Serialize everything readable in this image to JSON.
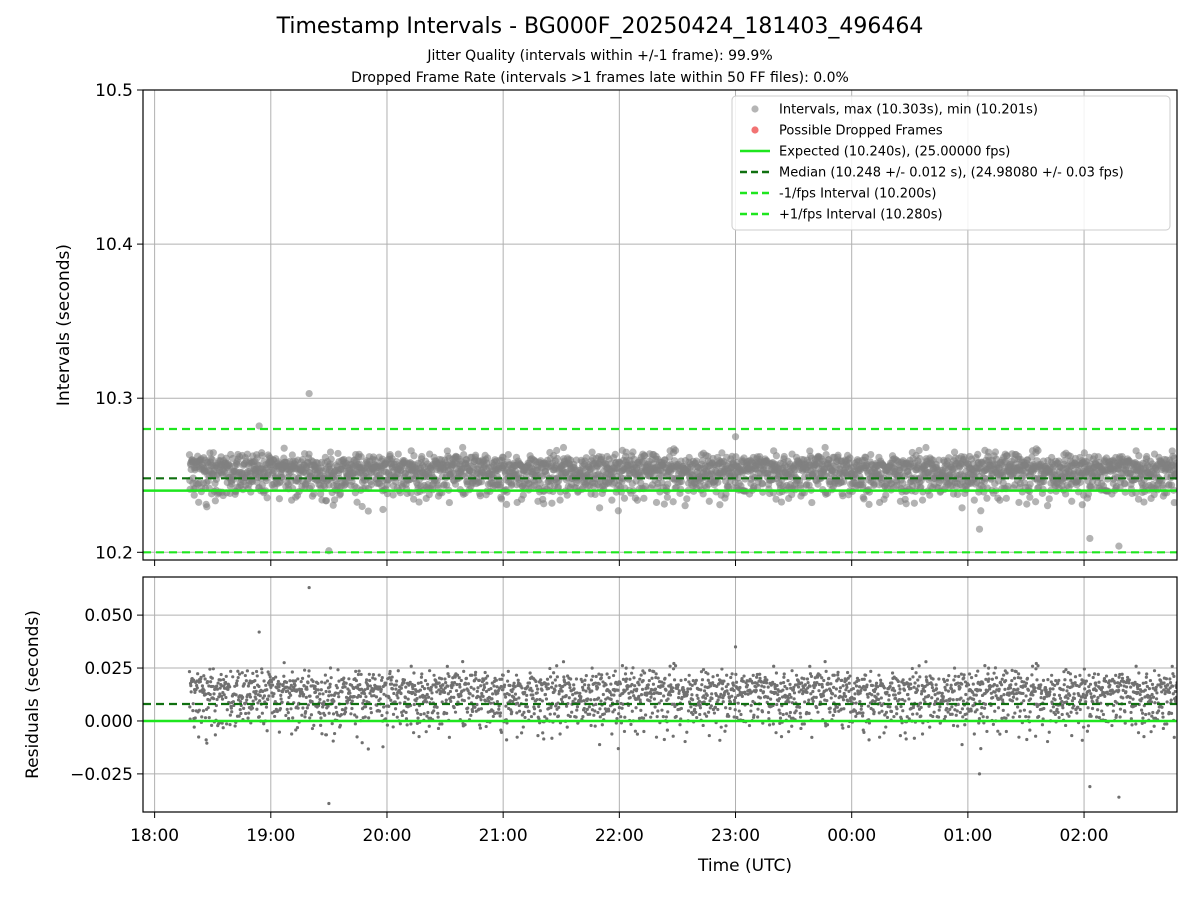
{
  "title": "Timestamp Intervals - BG000F_20250424_181403_496464",
  "subtitle_1": "Jitter Quality (intervals within +/-1 frame): 99.9%",
  "subtitle_2": "Dropped Frame Rate (intervals >1 frames late within 50 FF files): 0.0%",
  "colors": {
    "points": "#808080",
    "dropped": "#f05a5a",
    "expected": "#1ee61e",
    "median": "#107010",
    "bounds": "#1ee61e",
    "grid": "#b0b0b0"
  },
  "chart_data": [
    {
      "type": "scatter",
      "panel": "top",
      "ylabel": "Intervals (seconds)",
      "ylim": [
        10.195,
        10.5
      ],
      "yticks": [
        10.2,
        10.3,
        10.4,
        10.5
      ],
      "ytick_labels": [
        "10.2",
        "10.3",
        "10.4",
        "10.5"
      ],
      "xlim_hours": [
        17.9,
        26.8
      ],
      "xticks_hours": [
        18,
        19,
        20,
        21,
        22,
        23,
        24,
        25,
        26
      ],
      "xtick_labels": [
        "18:00",
        "19:00",
        "20:00",
        "21:00",
        "22:00",
        "23:00",
        "00:00",
        "01:00",
        "02:00"
      ],
      "grid": true,
      "legend_placement": "top-right",
      "legend": [
        {
          "label": "Intervals, max (10.303s), min (10.201s)",
          "kind": "point",
          "color": "#a8a8a8"
        },
        {
          "label": "Possible Dropped Frames",
          "kind": "point",
          "color": "#f05a5a"
        },
        {
          "label": "Expected (10.240s), (25.00000 fps)",
          "kind": "line",
          "color": "#1ee61e"
        },
        {
          "label": "Median (10.248 +/- 0.012 s), (24.98080 +/- 0.03 fps)",
          "kind": "dash",
          "color": "#107010"
        },
        {
          "label": "-1/fps Interval (10.200s)",
          "kind": "dash",
          "color": "#1ee61e"
        },
        {
          "label": "+1/fps Interval (10.280s)",
          "kind": "dash",
          "color": "#1ee61e"
        }
      ],
      "data_range_hours": [
        18.3,
        26.8
      ],
      "n_points": 2900,
      "interval_stats": {
        "expected": 10.24,
        "median": 10.248,
        "std": 0.012,
        "max": 10.303,
        "min": 10.201
      },
      "reference_lines": {
        "expected": 10.24,
        "median": 10.248,
        "minus_1fps": 10.2,
        "plus_1fps": 10.28
      },
      "outliers": [
        {
          "x_hours": 19.33,
          "y": 10.303
        },
        {
          "x_hours": 19.5,
          "y": 10.201
        },
        {
          "x_hours": 26.3,
          "y": 10.204
        },
        {
          "x_hours": 26.05,
          "y": 10.209
        },
        {
          "x_hours": 25.1,
          "y": 10.215
        },
        {
          "x_hours": 18.9,
          "y": 10.282
        },
        {
          "x_hours": 23.0,
          "y": 10.275
        }
      ]
    },
    {
      "type": "scatter",
      "panel": "bottom",
      "xlabel": "Time (UTC)",
      "ylabel": "Residuals (seconds)",
      "ylim": [
        -0.043,
        0.068
      ],
      "yticks": [
        -0.025,
        0.0,
        0.025,
        0.05
      ],
      "ytick_labels": [
        "−0.025",
        "0.000",
        "0.025",
        "0.050"
      ],
      "xlim_hours": [
        17.9,
        26.8
      ],
      "xticks_hours": [
        18,
        19,
        20,
        21,
        22,
        23,
        24,
        25,
        26
      ],
      "xtick_labels": [
        "18:00",
        "19:00",
        "20:00",
        "21:00",
        "22:00",
        "23:00",
        "00:00",
        "01:00",
        "02:00"
      ],
      "grid": true,
      "reference_lines": {
        "zero": 0.0,
        "median_offset": 0.008
      },
      "residual_max": 0.063,
      "residual_min": -0.039
    }
  ]
}
